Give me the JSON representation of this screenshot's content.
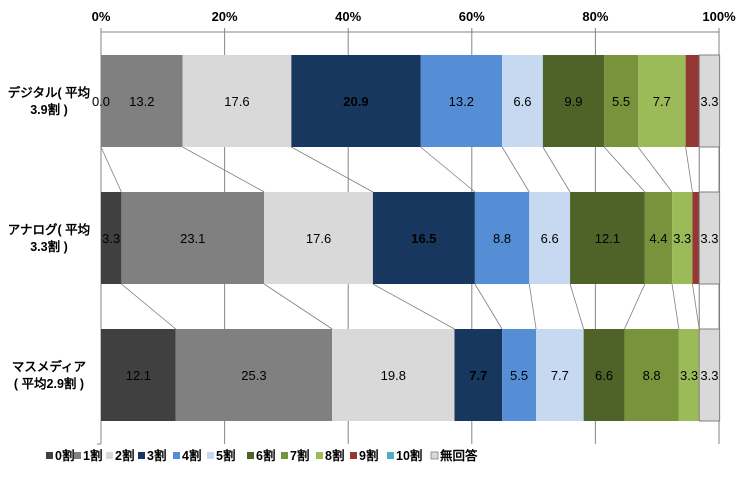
{
  "chart_data": {
    "type": "bar",
    "orientation": "horizontal",
    "stacked": "percent",
    "categories": [
      "デジタル（平均3.9割）",
      "アナログ（平均3.3割）",
      "マスメディア（平均2.9割）"
    ],
    "category_lines": [
      [
        "デジタル( 平均",
        "3.9割 )"
      ],
      [
        "アナログ( 平均",
        "3.3割 )"
      ],
      [
        "マスメディア",
        "( 平均2.9割 )"
      ]
    ],
    "xlim": [
      0,
      100
    ],
    "xticks": [
      "0%",
      "20%",
      "40%",
      "60%",
      "80%",
      "100%"
    ],
    "grid": true,
    "legend_position": "bottom",
    "series": [
      {
        "name": "0割",
        "color": "#404040",
        "values": [
          0.0,
          3.3,
          12.1
        ],
        "labels": [
          "0.0",
          "3.3",
          "12.1"
        ]
      },
      {
        "name": "1割",
        "color": "#808080",
        "values": [
          13.2,
          23.1,
          25.3
        ],
        "labels": [
          "13.2",
          "23.1",
          "25.3"
        ]
      },
      {
        "name": "2割",
        "color": "#d9d9d9",
        "values": [
          17.6,
          17.6,
          19.8
        ],
        "labels": [
          "17.6",
          "17.6",
          "19.8"
        ]
      },
      {
        "name": "3割",
        "color": "#17375e",
        "values": [
          20.9,
          16.5,
          7.7
        ],
        "labels": [
          "20.9",
          "16.5",
          "7.7"
        ],
        "label_color": "#ffffff"
      },
      {
        "name": "4割",
        "color": "#558ed5",
        "values": [
          13.2,
          8.8,
          5.5
        ],
        "labels": [
          "13.2",
          "8.8",
          "5.5"
        ]
      },
      {
        "name": "5割",
        "color": "#c6d9f1",
        "values": [
          6.6,
          6.6,
          7.7
        ],
        "labels": [
          "6.6",
          "6.6",
          "7.7"
        ]
      },
      {
        "name": "6割",
        "color": "#4f6228",
        "values": [
          9.9,
          12.1,
          6.6
        ],
        "labels": [
          "9.9",
          "12.1",
          "6.6"
        ]
      },
      {
        "name": "7割",
        "color": "#77933c",
        "values": [
          5.5,
          4.4,
          8.8
        ],
        "labels": [
          "5.5",
          "4.4",
          "8.8"
        ]
      },
      {
        "name": "8割",
        "color": "#9bbb59",
        "values": [
          7.7,
          3.3,
          3.3
        ],
        "labels": [
          "7.7",
          "3.3",
          "3.3"
        ]
      },
      {
        "name": "9割",
        "color": "#953735",
        "values": [
          2.2,
          1.1,
          0.0
        ],
        "labels": [
          "",
          "",
          ""
        ]
      },
      {
        "name": "10割",
        "color": "#4bacc6",
        "values": [
          0.0,
          0.0,
          0.0
        ],
        "labels": [
          "",
          "",
          ""
        ]
      },
      {
        "name": "無回答",
        "color": "#d9d9d9",
        "values": [
          3.3,
          3.3,
          3.3
        ],
        "labels": [
          "3.3",
          "3.3",
          "3.3"
        ],
        "legend_outline": "#808080"
      }
    ]
  }
}
